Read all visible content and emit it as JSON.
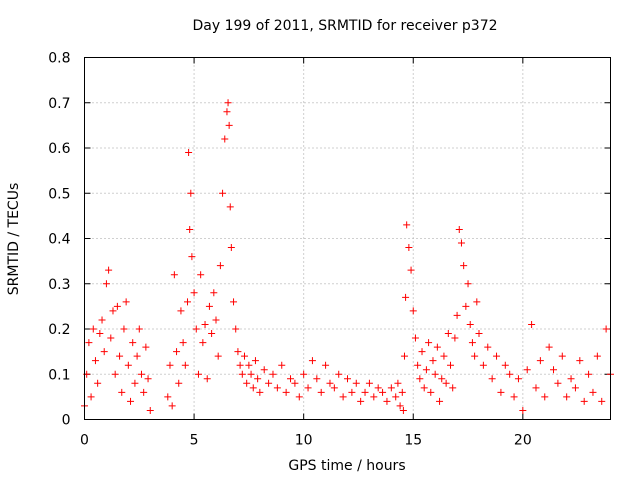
{
  "chart_data": {
    "type": "scatter",
    "title": "Day 199 of 2011, SRMTID for receiver p372",
    "xlabel": "GPS time / hours",
    "ylabel": "SRMTID / TECUs",
    "xlim": [
      0,
      24
    ],
    "ylim": [
      0,
      0.8
    ],
    "x_ticks": [
      0,
      5,
      10,
      15,
      20
    ],
    "x_tick_labels": [
      "0",
      "5",
      "10",
      "15",
      "20"
    ],
    "y_ticks": [
      0,
      0.1,
      0.2,
      0.3,
      0.4,
      0.5,
      0.6,
      0.7,
      0.8
    ],
    "y_tick_labels": [
      "0",
      "0.1",
      "0.2",
      "0.3",
      "0.4",
      "0.5",
      "0.6",
      "0.7",
      "0.8"
    ],
    "grid": true,
    "marker": "+",
    "series": [
      {
        "name": "SRMTID",
        "color": "#ff0000",
        "x": [
          0.0,
          0.1,
          0.2,
          0.3,
          0.4,
          0.5,
          0.6,
          0.7,
          0.8,
          0.9,
          1.0,
          1.1,
          1.2,
          1.3,
          1.4,
          1.5,
          1.6,
          1.7,
          1.8,
          1.9,
          2.0,
          2.1,
          2.2,
          2.3,
          2.4,
          2.5,
          2.6,
          2.7,
          2.8,
          2.9,
          3.0,
          3.8,
          3.9,
          4.0,
          4.1,
          4.2,
          4.3,
          4.4,
          4.5,
          4.6,
          4.7,
          4.75,
          4.8,
          4.85,
          4.9,
          5.0,
          5.1,
          5.2,
          5.3,
          5.4,
          5.5,
          5.6,
          5.7,
          5.8,
          5.9,
          6.0,
          6.1,
          6.2,
          6.3,
          6.4,
          6.5,
          6.55,
          6.6,
          6.65,
          6.7,
          6.8,
          6.9,
          7.0,
          7.1,
          7.2,
          7.3,
          7.4,
          7.5,
          7.6,
          7.7,
          7.8,
          7.9,
          8.0,
          8.2,
          8.4,
          8.6,
          8.8,
          9.0,
          9.2,
          9.4,
          9.6,
          9.8,
          10.0,
          10.2,
          10.4,
          10.6,
          10.8,
          11.0,
          11.2,
          11.4,
          11.6,
          11.8,
          12.0,
          12.2,
          12.4,
          12.6,
          12.8,
          13.0,
          13.2,
          13.4,
          13.6,
          13.8,
          14.0,
          14.2,
          14.3,
          14.4,
          14.5,
          14.55,
          14.6,
          14.65,
          14.7,
          14.8,
          14.9,
          15.0,
          15.1,
          15.2,
          15.3,
          15.4,
          15.5,
          15.6,
          15.7,
          15.8,
          15.9,
          16.0,
          16.1,
          16.2,
          16.3,
          16.4,
          16.5,
          16.6,
          16.7,
          16.8,
          16.9,
          17.0,
          17.1,
          17.2,
          17.3,
          17.4,
          17.5,
          17.6,
          17.7,
          17.8,
          17.9,
          18.0,
          18.2,
          18.4,
          18.6,
          18.8,
          19.0,
          19.2,
          19.4,
          19.6,
          19.8,
          20.0,
          20.2,
          20.4,
          20.6,
          20.8,
          21.0,
          21.2,
          21.4,
          21.6,
          21.8,
          22.0,
          22.2,
          22.4,
          22.6,
          22.8,
          23.0,
          23.2,
          23.4,
          23.6,
          23.8,
          24.0
        ],
        "y": [
          0.03,
          0.1,
          0.17,
          0.05,
          0.2,
          0.13,
          0.08,
          0.19,
          0.22,
          0.15,
          0.3,
          0.33,
          0.18,
          0.24,
          0.1,
          0.25,
          0.14,
          0.06,
          0.2,
          0.26,
          0.12,
          0.04,
          0.17,
          0.08,
          0.14,
          0.2,
          0.1,
          0.06,
          0.16,
          0.09,
          0.02,
          0.05,
          0.12,
          0.03,
          0.32,
          0.15,
          0.08,
          0.24,
          0.17,
          0.12,
          0.26,
          0.59,
          0.42,
          0.5,
          0.36,
          0.28,
          0.2,
          0.1,
          0.32,
          0.17,
          0.21,
          0.09,
          0.25,
          0.19,
          0.28,
          0.22,
          0.14,
          0.34,
          0.5,
          0.62,
          0.68,
          0.7,
          0.65,
          0.47,
          0.38,
          0.26,
          0.2,
          0.15,
          0.12,
          0.1,
          0.14,
          0.08,
          0.12,
          0.1,
          0.07,
          0.13,
          0.09,
          0.06,
          0.11,
          0.08,
          0.1,
          0.07,
          0.12,
          0.06,
          0.09,
          0.08,
          0.05,
          0.1,
          0.07,
          0.13,
          0.09,
          0.06,
          0.12,
          0.08,
          0.07,
          0.1,
          0.05,
          0.09,
          0.06,
          0.08,
          0.04,
          0.06,
          0.08,
          0.05,
          0.07,
          0.06,
          0.04,
          0.07,
          0.05,
          0.08,
          0.03,
          0.06,
          0.02,
          0.14,
          0.27,
          0.43,
          0.38,
          0.33,
          0.24,
          0.18,
          0.12,
          0.09,
          0.15,
          0.07,
          0.11,
          0.17,
          0.06,
          0.13,
          0.1,
          0.16,
          0.04,
          0.09,
          0.14,
          0.08,
          0.19,
          0.12,
          0.07,
          0.18,
          0.23,
          0.42,
          0.39,
          0.34,
          0.25,
          0.3,
          0.21,
          0.17,
          0.14,
          0.26,
          0.19,
          0.12,
          0.16,
          0.09,
          0.14,
          0.06,
          0.12,
          0.1,
          0.05,
          0.09,
          0.02,
          0.11,
          0.21,
          0.07,
          0.13,
          0.05,
          0.16,
          0.11,
          0.08,
          0.14,
          0.05,
          0.09,
          0.07,
          0.13,
          0.04,
          0.1,
          0.06,
          0.14,
          0.04,
          0.2,
          0.1
        ]
      }
    ]
  }
}
